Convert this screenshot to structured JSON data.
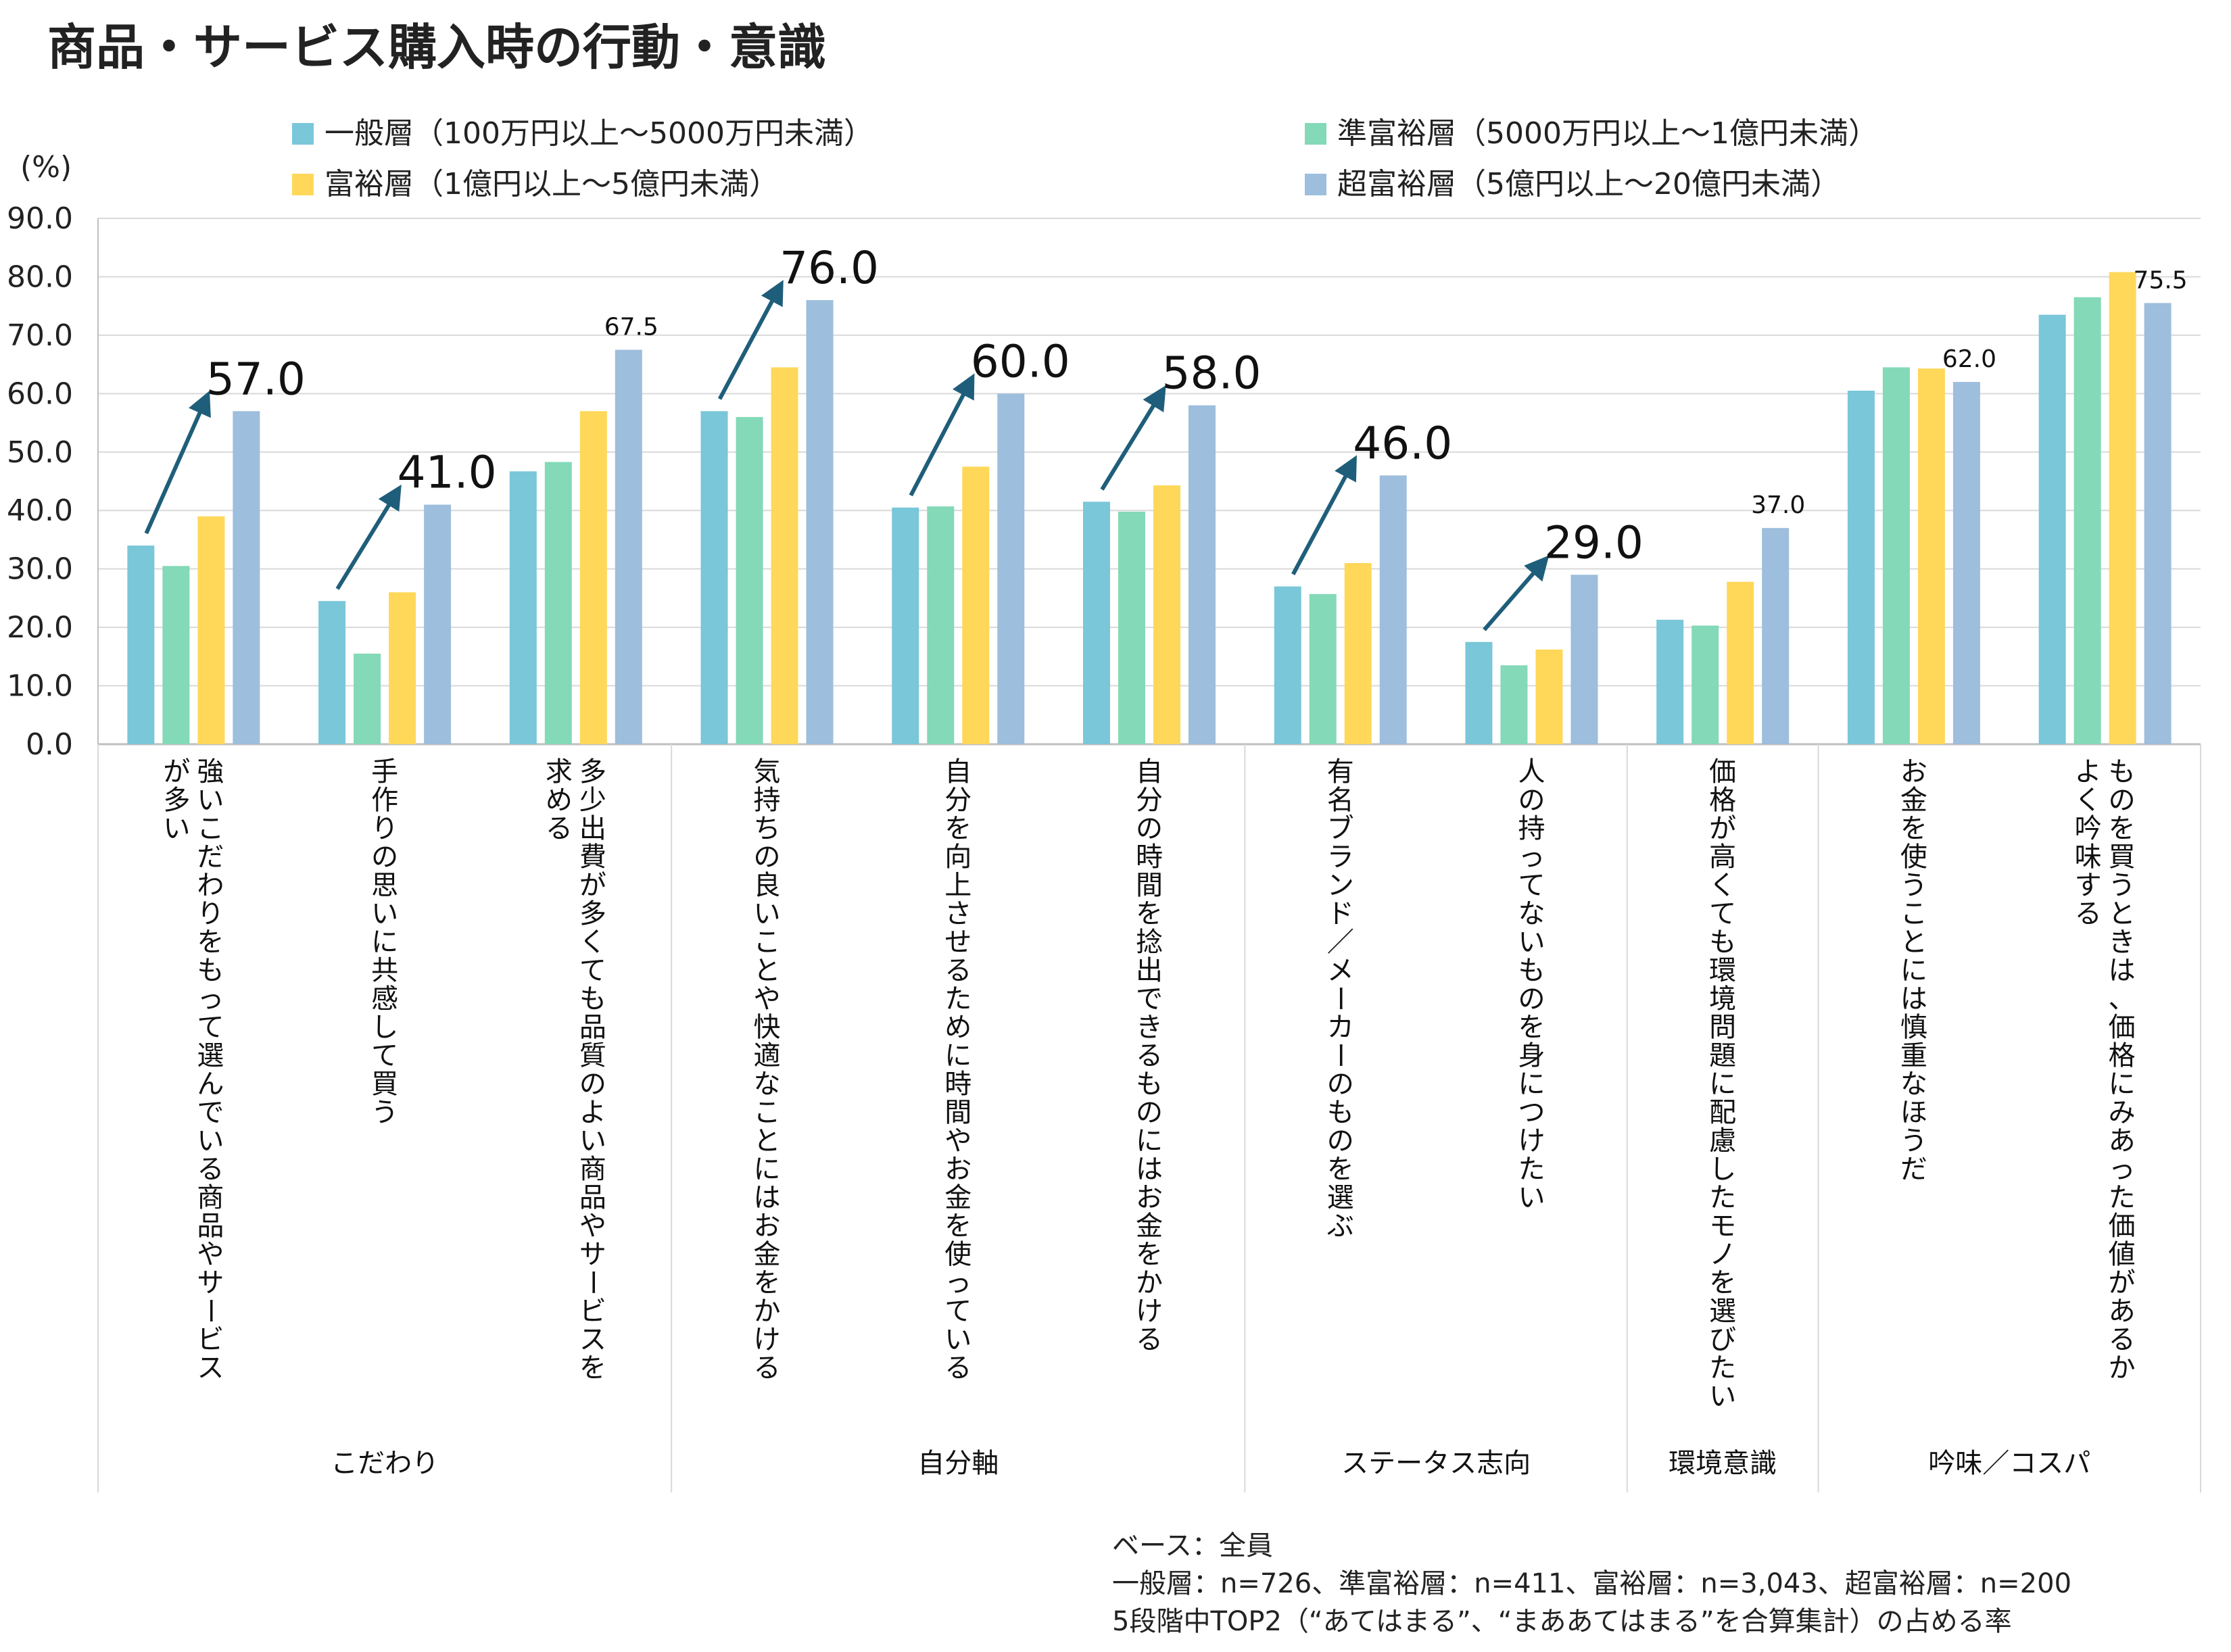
{
  "chart_data": {
    "type": "bar",
    "title": "商品・サービス購入時の行動・意識",
    "ylabel": "(%)",
    "ylim": [
      0,
      90
    ],
    "yticks": [
      "0.0",
      "10.0",
      "20.0",
      "30.0",
      "40.0",
      "50.0",
      "60.0",
      "70.0",
      "80.0",
      "90.0"
    ],
    "grid": true,
    "legend_position": "top",
    "series": [
      {
        "name": "一般層（100万円以上～5000万円未満）",
        "color": "#79C7D9",
        "values": [
          34.0,
          24.5,
          46.7,
          57.0,
          40.5,
          41.5,
          27.0,
          17.5,
          21.3,
          60.5,
          73.5
        ]
      },
      {
        "name": "準富裕層（5000万円以上～1億円未満）",
        "color": "#83D9B8",
        "values": [
          30.5,
          15.5,
          48.3,
          56.0,
          40.7,
          39.8,
          25.7,
          13.5,
          20.3,
          64.5,
          76.5
        ]
      },
      {
        "name": "富裕層（1億円以上～5億円未満）",
        "color": "#FFD85A",
        "values": [
          39.0,
          26.0,
          57.0,
          64.5,
          47.5,
          44.3,
          31.0,
          16.2,
          27.8,
          64.3,
          80.8
        ]
      },
      {
        "name": "超富裕層（5億円以上～20億円未満）",
        "color": "#9DBEDC",
        "values": [
          57.0,
          41.0,
          67.5,
          76.0,
          60.0,
          58.0,
          46.0,
          29.0,
          37.0,
          62.0,
          75.5
        ]
      }
    ],
    "categories": [
      [
        "強いこだわりをもって選んでいる商品やサービス",
        "が多い"
      ],
      [
        "手作りの思いに共感して買う"
      ],
      [
        "多少出費が多くても品質のよい商品やサービスを",
        "求める"
      ],
      [
        "気持ちの良いことや快適なことにはお金をかける"
      ],
      [
        "自分を向上させるために時間やお金を使っている"
      ],
      [
        "自分の時間を捻出できるものにはお金をかける"
      ],
      [
        "有名ブランド／メーカーのものを選ぶ"
      ],
      [
        "人の持ってないものを身につけたい"
      ],
      [
        "価格が高くても環境問題に配慮したモノを選びたい"
      ],
      [
        "お金を使うことには慎重なほうだ"
      ],
      [
        "ものを買うときは、価格にみあった価値があるか",
        "よく吟味する"
      ]
    ],
    "groups": [
      {
        "label": "こだわり",
        "span": [
          0,
          2
        ]
      },
      {
        "label": "自分軸",
        "span": [
          3,
          5
        ]
      },
      {
        "label": "ステータス志向",
        "span": [
          6,
          7
        ]
      },
      {
        "label": "環境意識",
        "span": [
          8,
          8
        ]
      },
      {
        "label": "吟味／コスパ",
        "span": [
          9,
          10
        ]
      }
    ],
    "annotations": [
      {
        "category": 0,
        "label": "57.0",
        "style": "big",
        "arrow": true
      },
      {
        "category": 1,
        "label": "41.0",
        "style": "big",
        "arrow": true
      },
      {
        "category": 2,
        "label": "67.5",
        "style": "small",
        "arrow": false
      },
      {
        "category": 3,
        "label": "76.0",
        "style": "big",
        "arrow": true
      },
      {
        "category": 4,
        "label": "60.0",
        "style": "big",
        "arrow": true
      },
      {
        "category": 5,
        "label": "58.0",
        "style": "big",
        "arrow": true
      },
      {
        "category": 6,
        "label": "46.0",
        "style": "big",
        "arrow": true
      },
      {
        "category": 7,
        "label": "29.0",
        "style": "big",
        "arrow": true
      },
      {
        "category": 8,
        "label": "37.0",
        "style": "small",
        "arrow": false
      },
      {
        "category": 9,
        "label": "62.0",
        "style": "small",
        "arrow": false
      },
      {
        "category": 10,
        "label": "75.5",
        "style": "small",
        "arrow": false
      }
    ],
    "arrow_color": "#1F5E7A",
    "notes": [
      "ベース：全員",
      "一般層：n=726、準富裕層：n=411、富裕層：n=3,043、超富裕層：n=200",
      "5段階中TOP2（“あてはまる”、“まああてはまる”を合算集計）の占める率"
    ]
  }
}
